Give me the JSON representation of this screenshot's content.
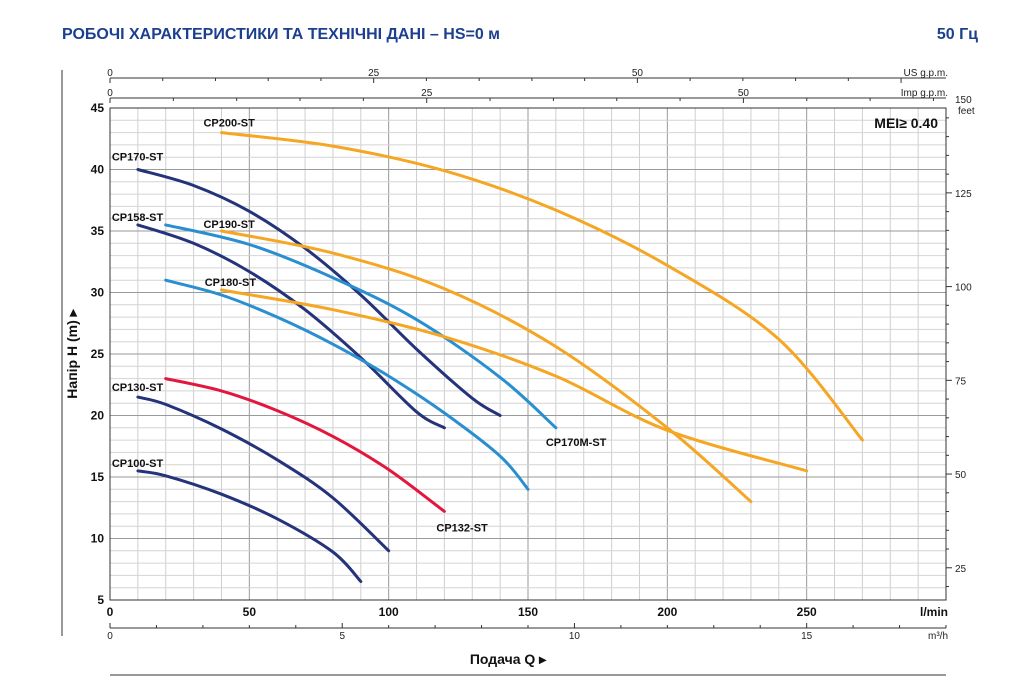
{
  "header": {
    "title": "РОБОЧІ ХАРАКТЕРИСТИКИ ТА ТЕХНІЧНІ ДАНІ  –  HS=0 м",
    "frequency": "50 Гц"
  },
  "chart_data": {
    "type": "line",
    "title": "РОБОЧІ ХАРАКТЕРИСТИКИ ТА ТЕХНІЧНІ ДАНІ – HS=0 м",
    "annotation": "MEI≥ 0.40",
    "xlabel": "Подача Q ▸",
    "ylabel": "Напір H  (m) ▸",
    "x_unit": "l/min",
    "xlim": [
      0,
      300
    ],
    "ylim": [
      5,
      45
    ],
    "x_ticks": [
      0,
      50,
      100,
      150,
      200,
      250
    ],
    "y_ticks": [
      5,
      10,
      15,
      20,
      25,
      30,
      35,
      40,
      45
    ],
    "secondary_axes": {
      "us_gpm": {
        "unit": "US g.p.m.",
        "ticks": [
          0,
          25,
          50
        ]
      },
      "imp_gpm": {
        "unit": "Imp g.p.m.",
        "ticks": [
          0,
          25,
          50
        ]
      },
      "m3h": {
        "unit": "m³/h",
        "ticks": [
          0,
          5,
          10,
          15
        ]
      },
      "feet": {
        "unit": "feet",
        "ticks": [
          25,
          50,
          75,
          100,
          125,
          150
        ]
      }
    },
    "series": [
      {
        "name": "CP100-ST",
        "label": "CP100-ST",
        "color": "#24337a",
        "x": [
          10,
          20,
          40,
          60,
          80,
          90
        ],
        "y": [
          15.5,
          15.1,
          13.6,
          11.6,
          8.9,
          6.5
        ]
      },
      {
        "name": "CP130-ST",
        "label": "CP130-ST",
        "color": "#24337a",
        "x": [
          10,
          20,
          40,
          60,
          80,
          100
        ],
        "y": [
          21.5,
          20.9,
          18.9,
          16.4,
          13.3,
          9.0
        ]
      },
      {
        "name": "CP132-ST",
        "label": "CP132-ST",
        "color": "#e3173e",
        "x": [
          20,
          40,
          60,
          80,
          100,
          120
        ],
        "y": [
          23.0,
          22.0,
          20.4,
          18.3,
          15.6,
          12.2
        ]
      },
      {
        "name": "CP158-ST",
        "label": "CP158-ST",
        "color": "#24337a",
        "x": [
          10,
          30,
          50,
          70,
          90,
          110,
          120
        ],
        "y": [
          35.5,
          34.0,
          31.7,
          28.6,
          24.7,
          20.3,
          19.0
        ]
      },
      {
        "name": "CP170-ST",
        "label": "CP170-ST",
        "color": "#24337a",
        "x": [
          10,
          30,
          50,
          70,
          90,
          110,
          130,
          140
        ],
        "y": [
          40.0,
          38.7,
          36.6,
          33.6,
          29.8,
          25.4,
          21.4,
          20.0
        ]
      },
      {
        "name": "CP180-ST",
        "label": "CP180-ST",
        "color": "#2a8fd0",
        "x": [
          20,
          40,
          60,
          80,
          100,
          120,
          140,
          150
        ],
        "y": [
          31.0,
          29.8,
          28.0,
          25.8,
          23.2,
          20.2,
          16.7,
          14.0
        ]
      },
      {
        "name": "CP170M-ST",
        "label": "CP170M-ST",
        "color": "#2a8fd0",
        "x": [
          20,
          50,
          80,
          110,
          140,
          160
        ],
        "y": [
          35.5,
          33.9,
          31.2,
          27.8,
          23.1,
          19.0
        ]
      },
      {
        "name": "CP190-ST",
        "label": "CP190-ST",
        "color": "#f5a623",
        "x": [
          40,
          80,
          120,
          160,
          200,
          230
        ],
        "y": [
          35.0,
          33.2,
          30.3,
          25.6,
          19.0,
          13.0
        ]
      },
      {
        "name": "CP170M",
        "label": "",
        "color": "#f5a623",
        "x": [
          40,
          80,
          120,
          160,
          200,
          250
        ],
        "y": [
          30.2,
          28.6,
          26.4,
          23.2,
          18.8,
          15.5
        ]
      },
      {
        "name": "CP200-ST",
        "label": "CP200-ST",
        "color": "#f5a623",
        "x": [
          40,
          80,
          120,
          160,
          200,
          240,
          270
        ],
        "y": [
          43.0,
          41.9,
          39.9,
          36.7,
          32.2,
          26.2,
          18.0
        ]
      }
    ]
  }
}
